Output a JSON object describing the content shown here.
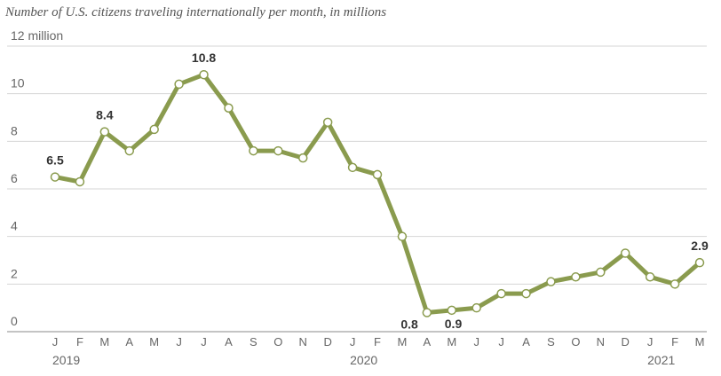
{
  "chart_data": {
    "type": "line",
    "title": "Number of U.S. citizens traveling internationally per month, in millions",
    "xlabel": "",
    "ylabel": "",
    "ylim": [
      0,
      12
    ],
    "yticks": [
      {
        "value": 0,
        "label": "0"
      },
      {
        "value": 2,
        "label": "2"
      },
      {
        "value": 4,
        "label": "4"
      },
      {
        "value": 6,
        "label": "6"
      },
      {
        "value": 8,
        "label": "8"
      },
      {
        "value": 10,
        "label": "10"
      },
      {
        "value": 12,
        "label": "12 million"
      }
    ],
    "grid": true,
    "line_color": "#8a9b4e",
    "marker_fill": "#ffffff",
    "categories": [
      "J",
      "F",
      "M",
      "A",
      "M",
      "J",
      "J",
      "A",
      "S",
      "O",
      "N",
      "D",
      "J",
      "F",
      "M",
      "A",
      "M",
      "J",
      "J",
      "A",
      "S",
      "O",
      "N",
      "D",
      "J",
      "F",
      "M"
    ],
    "year_labels": [
      {
        "index": 0,
        "label": "2019"
      },
      {
        "index": 12,
        "label": "2020"
      },
      {
        "index": 24,
        "label": "2021"
      }
    ],
    "series": [
      {
        "values": [
          6.5,
          6.3,
          8.4,
          7.6,
          8.5,
          10.4,
          10.8,
          9.4,
          7.6,
          7.6,
          7.3,
          8.8,
          6.9,
          6.6,
          4.0,
          0.8,
          0.9,
          1.0,
          1.6,
          1.6,
          2.1,
          2.3,
          2.5,
          3.3,
          2.3,
          2.0,
          2.9
        ]
      }
    ],
    "data_labels": [
      {
        "index": 0,
        "label": "6.5",
        "position": "above"
      },
      {
        "index": 2,
        "label": "8.4",
        "position": "above"
      },
      {
        "index": 6,
        "label": "10.8",
        "position": "above"
      },
      {
        "index": 15,
        "label": "0.8",
        "position": "below-left"
      },
      {
        "index": 16,
        "label": "0.9",
        "position": "below-right"
      },
      {
        "index": 26,
        "label": "2.9",
        "position": "above"
      }
    ]
  }
}
